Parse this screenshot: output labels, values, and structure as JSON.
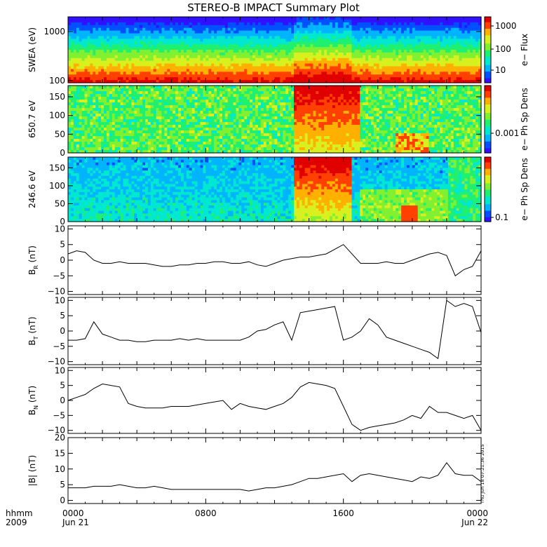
{
  "title": "STEREO-B IMPACT Summary Plot",
  "timestamp": "Thu Jun 18 07:21:36 2015",
  "x_axis": {
    "row_label_1": "hhmm",
    "row_label_2": "2009",
    "ticks": [
      {
        "time_label": "0000",
        "date_label": "Jun 21"
      },
      {
        "time_label": "0800",
        "date_label": ""
      },
      {
        "time_label": "1600",
        "date_label": ""
      },
      {
        "time_label": "0000",
        "date_label": "Jun 22"
      }
    ],
    "range_hours": [
      0,
      24
    ]
  },
  "chart_data": [
    {
      "type": "heatmap",
      "panel": "swea",
      "ylabel": "SWEA (eV)",
      "ylog": true,
      "ylim": [
        90,
        2000
      ],
      "y_ticks": [
        {
          "value": 100,
          "label": "100"
        },
        {
          "value": 1000,
          "label": "1000"
        }
      ],
      "colorbar": {
        "label": "e− Flux",
        "scale": "log",
        "ticks": [
          {
            "value": 10,
            "label": "10"
          },
          {
            "value": 100,
            "label": "100"
          },
          {
            "value": 1000,
            "label": "1000"
          }
        ]
      },
      "xlim_hours": [
        0,
        24
      ]
    },
    {
      "type": "heatmap",
      "panel": "pad650",
      "ylabel": "650.7 eV",
      "ylim": [
        0,
        180
      ],
      "y_ticks": [
        {
          "value": 0,
          "label": "0"
        },
        {
          "value": 50,
          "label": "50"
        },
        {
          "value": 100,
          "label": "100"
        },
        {
          "value": 150,
          "label": "150"
        }
      ],
      "colorbar": {
        "label": "e− Ph Sp Dens",
        "scale": "log",
        "ticks": [
          {
            "value": 0.001,
            "label": "0.001"
          }
        ]
      },
      "xlim_hours": [
        0,
        24
      ]
    },
    {
      "type": "heatmap",
      "panel": "pad246",
      "ylabel": "246.6 eV",
      "ylim": [
        0,
        180
      ],
      "y_ticks": [
        {
          "value": 0,
          "label": "0"
        },
        {
          "value": 50,
          "label": "50"
        },
        {
          "value": 100,
          "label": "100"
        },
        {
          "value": 150,
          "label": "150"
        }
      ],
      "colorbar": {
        "label": "e− Ph Sp Dens",
        "scale": "log",
        "ticks": [
          {
            "value": 0.1,
            "label": "0.1"
          }
        ]
      },
      "xlim_hours": [
        0,
        24
      ]
    },
    {
      "type": "line",
      "panel": "br",
      "ylabel": "B",
      "ylabel_sub": "R",
      "ylabel_unit": "(nT)",
      "ylim": [
        -11,
        11
      ],
      "y_ticks": [
        {
          "value": -10,
          "label": "−10"
        },
        {
          "value": -5,
          "label": "−5"
        },
        {
          "value": 0,
          "label": "0"
        },
        {
          "value": 5,
          "label": "5"
        },
        {
          "value": 10,
          "label": "10"
        }
      ],
      "x": [
        0,
        0.5,
        1,
        1.5,
        2,
        2.5,
        3,
        3.5,
        4,
        4.5,
        5,
        5.5,
        6,
        6.5,
        7,
        7.5,
        8,
        8.5,
        9,
        9.5,
        10,
        10.5,
        11,
        11.5,
        12,
        12.5,
        13,
        13.5,
        14,
        14.5,
        15,
        15.5,
        16,
        16.5,
        17,
        17.5,
        18,
        18.5,
        19,
        19.5,
        20,
        20.5,
        21,
        21.5,
        22,
        22.5,
        23,
        23.5,
        24
      ],
      "y": [
        2,
        3,
        2.5,
        0,
        -1,
        -1,
        -0.5,
        -1,
        -1,
        -1,
        -1.5,
        -2,
        -2,
        -1.5,
        -1.5,
        -1,
        -1,
        -0.5,
        -0.5,
        -1,
        -1,
        -0.5,
        -1.5,
        -2,
        -1,
        0,
        0.5,
        1,
        1,
        1.5,
        2,
        3.5,
        5,
        2,
        -1,
        -1,
        -1,
        -0.5,
        -1,
        -1,
        0,
        1,
        2,
        2.5,
        1.5,
        -5,
        -3,
        -2,
        3
      ]
    },
    {
      "type": "line",
      "panel": "bt",
      "ylabel": "B",
      "ylabel_sub": "T",
      "ylabel_unit": "(nT)",
      "ylim": [
        -11,
        11
      ],
      "y_ticks": [
        {
          "value": -10,
          "label": "−10"
        },
        {
          "value": -5,
          "label": "−5"
        },
        {
          "value": 0,
          "label": "0"
        },
        {
          "value": 5,
          "label": "5"
        },
        {
          "value": 10,
          "label": "10"
        }
      ],
      "x": [
        0,
        0.5,
        1,
        1.5,
        2,
        2.5,
        3,
        3.5,
        4,
        4.5,
        5,
        5.5,
        6,
        6.5,
        7,
        7.5,
        8,
        8.5,
        9,
        9.5,
        10,
        10.5,
        11,
        11.5,
        12,
        12.5,
        13,
        13.5,
        14,
        14.5,
        15,
        15.5,
        16,
        16.5,
        17,
        17.5,
        18,
        18.5,
        19,
        19.5,
        20,
        20.5,
        21,
        21.5,
        22,
        22.5,
        23,
        23.5,
        24
      ],
      "y": [
        -3,
        -3,
        -2.5,
        3,
        -1,
        -2,
        -3,
        -3,
        -3.5,
        -3.5,
        -3,
        -3,
        -3,
        -2.5,
        -3,
        -2.5,
        -3,
        -3,
        -3,
        -3,
        -3,
        -2,
        0,
        0.5,
        2,
        3,
        -3,
        6,
        6.5,
        7,
        7.5,
        8,
        -3,
        -2,
        0,
        4,
        2,
        -2,
        -3,
        -4,
        -5,
        -6,
        -7,
        -9,
        10,
        8,
        9,
        8,
        -0.5
      ]
    },
    {
      "type": "line",
      "panel": "bn",
      "ylabel": "B",
      "ylabel_sub": "N",
      "ylabel_unit": "(nT)",
      "ylim": [
        -11,
        11
      ],
      "y_ticks": [
        {
          "value": -10,
          "label": "−10"
        },
        {
          "value": -5,
          "label": "−5"
        },
        {
          "value": 0,
          "label": "0"
        },
        {
          "value": 5,
          "label": "5"
        },
        {
          "value": 10,
          "label": "10"
        }
      ],
      "x": [
        0,
        0.5,
        1,
        1.5,
        2,
        2.5,
        3,
        3.5,
        4,
        4.5,
        5,
        5.5,
        6,
        6.5,
        7,
        7.5,
        8,
        8.5,
        9,
        9.5,
        10,
        10.5,
        11,
        11.5,
        12,
        12.5,
        13,
        13.5,
        14,
        14.5,
        15,
        15.5,
        16,
        16.5,
        17,
        17.5,
        18,
        18.5,
        19,
        19.5,
        20,
        20.5,
        21,
        21.5,
        22,
        22.5,
        23,
        23.5,
        24
      ],
      "y": [
        0,
        1,
        2,
        4,
        5.5,
        5,
        4.5,
        -1,
        -2,
        -2.5,
        -2.5,
        -2.5,
        -2,
        -2,
        -2,
        -1.5,
        -1,
        -0.5,
        0,
        -3,
        -1,
        -2,
        -2.5,
        -3,
        -2,
        -1,
        1,
        4.5,
        6,
        5.5,
        5,
        4,
        -2,
        -8,
        -10,
        -9,
        -8.5,
        -8,
        -7.5,
        -6.5,
        -5,
        -6,
        -2,
        -4,
        -4,
        -5,
        -6,
        -5,
        -10
      ]
    },
    {
      "type": "line",
      "panel": "bmag",
      "ylabel": "|B|",
      "ylabel_unit": "(nT)",
      "ylim": [
        -1,
        20
      ],
      "y_ticks": [
        {
          "value": 0,
          "label": "0"
        },
        {
          "value": 5,
          "label": "5"
        },
        {
          "value": 10,
          "label": "10"
        },
        {
          "value": 15,
          "label": "15"
        },
        {
          "value": 20,
          "label": "20"
        }
      ],
      "x": [
        0,
        0.5,
        1,
        1.5,
        2,
        2.5,
        3,
        3.5,
        4,
        4.5,
        5,
        5.5,
        6,
        6.5,
        7,
        7.5,
        8,
        8.5,
        9,
        9.5,
        10,
        10.5,
        11,
        11.5,
        12,
        12.5,
        13,
        13.5,
        14,
        14.5,
        15,
        15.5,
        16,
        16.5,
        17,
        17.5,
        18,
        18.5,
        19,
        19.5,
        20,
        20.5,
        21,
        21.5,
        22,
        22.5,
        23,
        23.5,
        24
      ],
      "y": [
        4,
        4,
        4,
        4.5,
        4.5,
        4.5,
        5,
        4.5,
        4,
        4,
        4.5,
        4,
        3.5,
        3.5,
        3.5,
        3.5,
        3.5,
        3.5,
        3.5,
        3.5,
        3.5,
        3,
        3.5,
        4,
        4,
        4.5,
        5,
        6,
        7,
        7,
        7.5,
        8,
        8.5,
        6,
        8,
        8.5,
        8,
        7.5,
        7,
        6.5,
        6,
        7.5,
        7,
        8,
        12,
        8.5,
        8,
        8,
        6
      ]
    }
  ],
  "colors": {
    "colormap": [
      "#3010ff",
      "#0050ff",
      "#00b4ff",
      "#00e8d0",
      "#20f070",
      "#80f030",
      "#d8f020",
      "#ffb000",
      "#ff4000",
      "#e00000"
    ]
  }
}
